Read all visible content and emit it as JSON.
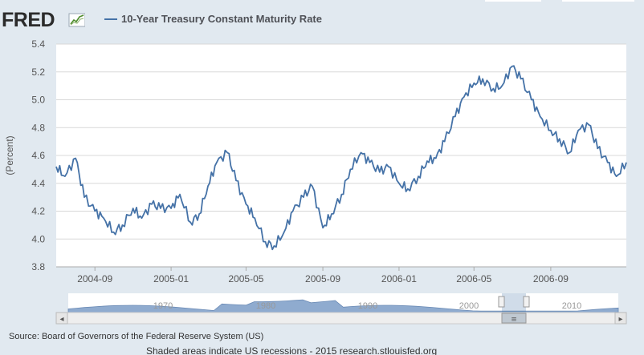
{
  "brand": {
    "name": "FRED"
  },
  "legend": {
    "label": "10-Year Treasury Constant Maturity Rate",
    "color": "#4572a7"
  },
  "chart_data": {
    "type": "line",
    "title": "10-Year Treasury Constant Maturity Rate",
    "xlabel": "",
    "ylabel": "(Percent)",
    "ylim": [
      3.8,
      5.4
    ],
    "yticks": [
      3.8,
      4.0,
      4.2,
      4.4,
      4.6,
      4.8,
      5.0,
      5.2,
      5.4
    ],
    "ytick_labels": [
      "3.8",
      "4.0",
      "4.2",
      "4.4",
      "4.6",
      "4.8",
      "5.0",
      "5.2",
      "5.4"
    ],
    "xlim": [
      "2004-07-01",
      "2006-12-31"
    ],
    "xticks": [
      "2004-09",
      "2005-01",
      "2005-05",
      "2005-09",
      "2006-01",
      "2006-05",
      "2006-09"
    ],
    "grid": true,
    "series": [
      {
        "name": "10-Year Treasury Constant Maturity Rate",
        "color": "#4572a7",
        "x": [
          "2004-07-01",
          "2004-07-15",
          "2004-08-01",
          "2004-08-15",
          "2004-09-01",
          "2004-09-15",
          "2004-10-01",
          "2004-10-15",
          "2004-11-01",
          "2004-11-15",
          "2004-12-01",
          "2004-12-15",
          "2005-01-01",
          "2005-01-15",
          "2005-02-01",
          "2005-02-15",
          "2005-03-01",
          "2005-03-15",
          "2005-04-01",
          "2005-04-15",
          "2005-05-01",
          "2005-05-15",
          "2005-06-01",
          "2005-06-15",
          "2005-07-01",
          "2005-07-15",
          "2005-08-01",
          "2005-08-15",
          "2005-09-01",
          "2005-09-15",
          "2005-10-01",
          "2005-10-15",
          "2005-11-01",
          "2005-11-15",
          "2005-12-01",
          "2005-12-15",
          "2006-01-01",
          "2006-01-15",
          "2006-02-01",
          "2006-02-15",
          "2006-03-01",
          "2006-03-15",
          "2006-04-01",
          "2006-04-15",
          "2006-05-01",
          "2006-05-15",
          "2006-06-01",
          "2006-06-15",
          "2006-07-01",
          "2006-07-15",
          "2006-08-01",
          "2006-08-15",
          "2006-09-01",
          "2006-09-15",
          "2006-10-01",
          "2006-10-15",
          "2006-11-01",
          "2006-11-15",
          "2006-12-01",
          "2006-12-15",
          "2006-12-31"
        ],
        "values": [
          4.52,
          4.45,
          4.58,
          4.3,
          4.2,
          4.15,
          4.05,
          4.1,
          4.22,
          4.15,
          4.25,
          4.22,
          4.22,
          4.32,
          4.12,
          4.18,
          4.38,
          4.55,
          4.62,
          4.42,
          4.25,
          4.15,
          3.98,
          3.95,
          4.05,
          4.2,
          4.3,
          4.38,
          4.08,
          4.18,
          4.32,
          4.5,
          4.62,
          4.55,
          4.48,
          4.52,
          4.4,
          4.36,
          4.45,
          4.56,
          4.58,
          4.7,
          4.88,
          5.02,
          5.12,
          5.15,
          5.08,
          5.1,
          5.24,
          5.15,
          5.0,
          4.88,
          4.78,
          4.72,
          4.62,
          4.78,
          4.82,
          4.65,
          4.55,
          4.45,
          4.55
        ]
      }
    ],
    "navigator": {
      "labels": [
        "1970",
        "1980",
        "1990",
        "2000",
        "2010"
      ]
    },
    "scrollbar": {
      "left_arrow": "◂",
      "right_arrow": "▸",
      "grip": "≡"
    }
  },
  "source": "Source: Board of Governors of the Federal Reserve System (US)",
  "footer": "Shaded areas indicate US recessions - 2015 research.stlouisfed.org"
}
